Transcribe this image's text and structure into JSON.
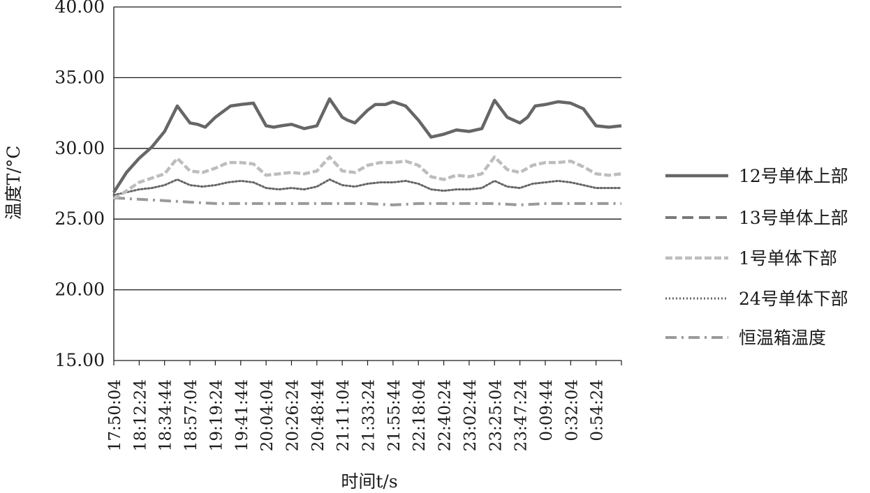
{
  "chart_data": {
    "type": "line",
    "ylabel": "温度T/°C",
    "xlabel": "时间t/s",
    "ylim": [
      15,
      40
    ],
    "yticks": [
      "15.00",
      "20.00",
      "25.00",
      "30.00",
      "35.00",
      "40.00"
    ],
    "grid": "horizontal",
    "legend_position": "right",
    "categories": [
      "17:50:04",
      "18:12:24",
      "18:34:44",
      "18:57:04",
      "19:19:24",
      "19:41:44",
      "20:04:04",
      "20:26:24",
      "20:48:44",
      "21:11:04",
      "21:33:24",
      "21:55:44",
      "22:18:04",
      "22:40:24",
      "23:02:44",
      "23:25:04",
      "23:47:24",
      "0:09:44",
      "0:32:04",
      "0:54:24"
    ],
    "series": [
      {
        "name": "12号单体上部",
        "style": "solid",
        "color": "#666666",
        "x": [
          0,
          0.5,
          1,
          1.5,
          2,
          2.5,
          3,
          3.3,
          3.6,
          4,
          4.3,
          4.6,
          5,
          5.5,
          6,
          6.3,
          6.6,
          7,
          7.5,
          8,
          8.5,
          9,
          9.2,
          9.5,
          10,
          10.3,
          10.7,
          11,
          11.5,
          12,
          12.5,
          13,
          13.5,
          14,
          14.5,
          15,
          15.5,
          16,
          16.3,
          16.6,
          17,
          17.5,
          18,
          18.5,
          19,
          19.5,
          20
        ],
        "values": [
          26.9,
          28.3,
          29.3,
          30.1,
          31.2,
          33.0,
          31.8,
          31.7,
          31.5,
          32.2,
          32.6,
          33.0,
          33.1,
          33.2,
          31.6,
          31.5,
          31.6,
          31.7,
          31.4,
          31.6,
          33.5,
          32.2,
          32.0,
          31.8,
          32.7,
          33.1,
          33.1,
          33.3,
          33.0,
          32.0,
          30.8,
          31.0,
          31.3,
          31.2,
          31.4,
          33.4,
          32.2,
          31.8,
          32.2,
          33.0,
          33.1,
          33.3,
          33.2,
          32.8,
          31.6,
          31.5,
          31.6
        ]
      },
      {
        "name": "13号单体上部",
        "style": "dashed",
        "color": "#7a7a7a",
        "x": [],
        "values": []
      },
      {
        "name": "1号单体下部",
        "style": "dashed-light",
        "color": "#bdbdbd",
        "x": [
          0,
          0.5,
          1,
          1.5,
          2,
          2.5,
          3,
          3.5,
          4,
          4.5,
          5,
          5.5,
          6,
          6.5,
          7,
          7.5,
          8,
          8.5,
          9,
          9.5,
          10,
          10.5,
          11,
          11.5,
          12,
          12.5,
          13,
          13.5,
          14,
          14.5,
          15,
          15.5,
          16,
          16.5,
          17,
          17.5,
          18,
          18.5,
          19,
          19.5,
          20
        ],
        "values": [
          26.4,
          27.0,
          27.6,
          27.9,
          28.2,
          29.3,
          28.4,
          28.3,
          28.6,
          29.0,
          29.0,
          28.9,
          28.1,
          28.2,
          28.3,
          28.2,
          28.4,
          29.4,
          28.4,
          28.3,
          28.8,
          29.0,
          29.0,
          29.1,
          28.8,
          28.0,
          27.8,
          28.1,
          28.0,
          28.2,
          29.4,
          28.5,
          28.3,
          28.8,
          29.0,
          29.0,
          29.1,
          28.7,
          28.2,
          28.1,
          28.2
        ]
      },
      {
        "name": "24号单体下部",
        "style": "dotted",
        "color": "#666666",
        "x": [
          0,
          0.5,
          1,
          1.5,
          2,
          2.5,
          3,
          3.5,
          4,
          4.5,
          5,
          5.5,
          6,
          6.5,
          7,
          7.5,
          8,
          8.5,
          9,
          9.5,
          10,
          10.5,
          11,
          11.5,
          12,
          12.5,
          13,
          13.5,
          14,
          14.5,
          15,
          15.5,
          16,
          16.5,
          17,
          17.5,
          18,
          18.5,
          19,
          19.5,
          20
        ],
        "values": [
          26.7,
          26.9,
          27.1,
          27.2,
          27.4,
          27.8,
          27.4,
          27.3,
          27.4,
          27.6,
          27.7,
          27.6,
          27.2,
          27.1,
          27.2,
          27.1,
          27.3,
          27.8,
          27.4,
          27.3,
          27.5,
          27.6,
          27.6,
          27.7,
          27.5,
          27.1,
          27.0,
          27.1,
          27.1,
          27.2,
          27.7,
          27.3,
          27.2,
          27.5,
          27.6,
          27.7,
          27.6,
          27.4,
          27.2,
          27.2,
          27.2
        ]
      },
      {
        "name": "恒温箱温度",
        "style": "dash-dot",
        "color": "#9a9a9a",
        "x": [
          0,
          1,
          2,
          3,
          4,
          5,
          6,
          7,
          8,
          9,
          10,
          11,
          12,
          13,
          14,
          15,
          16,
          17,
          18,
          19,
          20
        ],
        "values": [
          26.5,
          26.4,
          26.3,
          26.2,
          26.1,
          26.1,
          26.1,
          26.1,
          26.1,
          26.1,
          26.1,
          26.0,
          26.1,
          26.1,
          26.1,
          26.1,
          26.0,
          26.1,
          26.1,
          26.1,
          26.1
        ]
      }
    ]
  }
}
